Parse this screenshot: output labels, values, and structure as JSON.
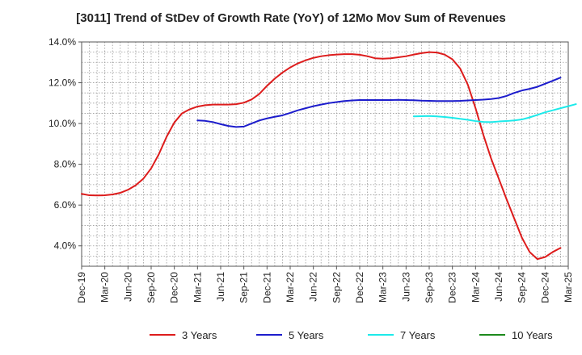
{
  "chart_data": {
    "type": "line",
    "title": "[3011]  Trend of StDev of Growth Rate (YoY) of 12Mo Mov Sum of Revenues",
    "xlabel": "",
    "ylabel": "",
    "ylim": [
      3.0,
      14.0
    ],
    "yticks": [
      {
        "value": 4.0,
        "label": "4.0%"
      },
      {
        "value": 6.0,
        "label": "6.0%"
      },
      {
        "value": 8.0,
        "label": "8.0%"
      },
      {
        "value": 10.0,
        "label": "10.0%"
      },
      {
        "value": 12.0,
        "label": "12.0%"
      },
      {
        "value": 14.0,
        "label": "14.0%"
      }
    ],
    "xticks": [
      "Dec-19",
      "Mar-20",
      "Jun-20",
      "Sep-20",
      "Dec-20",
      "Mar-21",
      "Jun-21",
      "Sep-21",
      "Dec-21",
      "Mar-22",
      "Jun-22",
      "Sep-22",
      "Dec-22",
      "Mar-23",
      "Jun-23",
      "Sep-23",
      "Dec-23",
      "Mar-24",
      "Jun-24",
      "Sep-24",
      "Dec-24",
      "Mar-25"
    ],
    "x_month_count": 63,
    "grid": true,
    "legend_position": "bottom",
    "series": [
      {
        "name": "3 Years",
        "color": "#dd1c1c",
        "start_index": 0,
        "values": [
          6.55,
          6.48,
          6.47,
          6.48,
          6.52,
          6.6,
          6.75,
          6.97,
          7.3,
          7.8,
          8.5,
          9.35,
          10.05,
          10.5,
          10.7,
          10.83,
          10.9,
          10.93,
          10.93,
          10.93,
          10.95,
          11.02,
          11.18,
          11.45,
          11.85,
          12.2,
          12.5,
          12.75,
          12.95,
          13.1,
          13.22,
          13.3,
          13.35,
          13.38,
          13.4,
          13.4,
          13.37,
          13.3,
          13.2,
          13.18,
          13.2,
          13.25,
          13.3,
          13.38,
          13.45,
          13.5,
          13.48,
          13.38,
          13.15,
          12.7,
          11.9,
          10.75,
          9.45,
          8.3,
          7.3,
          6.3,
          5.35,
          4.4,
          3.7,
          3.35,
          3.45,
          3.7,
          3.9
        ]
      },
      {
        "name": "5 Years",
        "color": "#1c1ccc",
        "start_index": 15,
        "values": [
          10.15,
          10.13,
          10.07,
          9.97,
          9.88,
          9.83,
          9.85,
          10.0,
          10.15,
          10.25,
          10.33,
          10.4,
          10.52,
          10.65,
          10.75,
          10.85,
          10.93,
          11.0,
          11.05,
          11.1,
          11.13,
          11.15,
          11.15,
          11.15,
          11.15,
          11.15,
          11.16,
          11.15,
          11.14,
          11.12,
          11.11,
          11.1,
          11.1,
          11.1,
          11.11,
          11.13,
          11.15,
          11.17,
          11.2,
          11.25,
          11.35,
          11.5,
          11.62,
          11.7,
          11.8,
          11.95,
          12.1,
          12.25
        ]
      },
      {
        "name": "7 Years",
        "color": "#1ceaea",
        "start_index": 43,
        "values": [
          10.35,
          10.36,
          10.37,
          10.35,
          10.32,
          10.28,
          10.23,
          10.18,
          10.12,
          10.08,
          10.07,
          10.1,
          10.12,
          10.15,
          10.2,
          10.3,
          10.42,
          10.55,
          10.65,
          10.75,
          10.85,
          10.95
        ]
      },
      {
        "name": "10 Years",
        "color": "#1c8a1c",
        "start_index": 0,
        "values": []
      }
    ]
  }
}
